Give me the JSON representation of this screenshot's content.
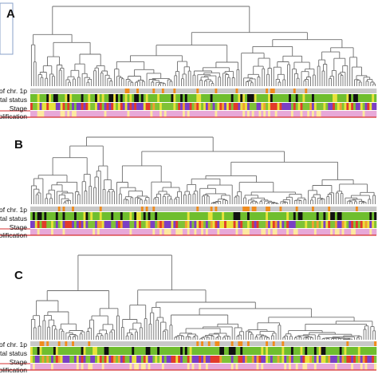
{
  "panels": [
    {
      "letter": "A",
      "tracks": [
        "of chr. 1p",
        "Vital status",
        "Stage",
        "mplification"
      ],
      "seed": 11
    },
    {
      "letter": "B",
      "tracks": [
        "of chr. 1p",
        "Vital status",
        "Stage",
        "mplification"
      ],
      "seed": 29
    },
    {
      "letter": "C",
      "tracks": [
        "of chr. 1p",
        "Vital status",
        "Stage",
        "mplification"
      ],
      "seed": 53
    }
  ],
  "colors": {
    "dendrogram": "#6e6e6e",
    "chr1p_normal": "#c8c8c8",
    "chr1p_deleted": "#f08c1e",
    "vital_alive": "#6fbe2e",
    "vital_dead": "#111111",
    "vital_other": "#e8e23a",
    "stage_1": "#7fc236",
    "stage_2": "#e8e23a",
    "stage_3": "#e23a2a",
    "stage_4": "#7a3fc4",
    "stage_4s": "#f0a030",
    "ampl_no": "#e7a8d8",
    "ampl_yes": "#fde9a0",
    "ampl_border": "#d63030",
    "side_line": "#8aa0c8"
  }
}
